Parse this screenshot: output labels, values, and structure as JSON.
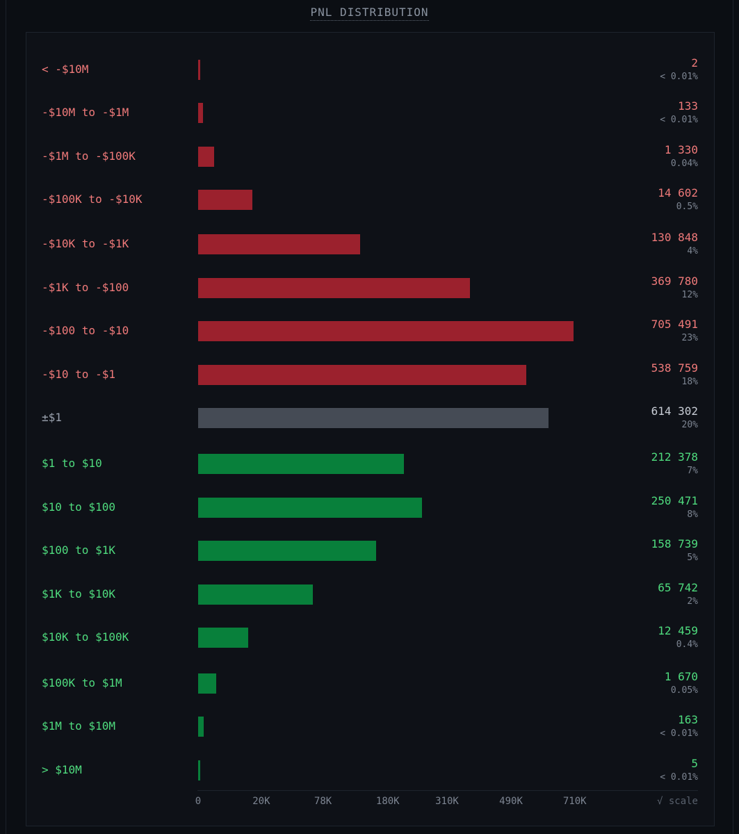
{
  "header": {
    "title": "PNL DISTRIBUTION"
  },
  "chart_data": {
    "type": "bar",
    "orientation": "horizontal",
    "scale": "sqrt",
    "scale_label": "√ scale",
    "xlim": [
      0,
      740000
    ],
    "x_ticks": [
      {
        "value": 0,
        "label": "0"
      },
      {
        "value": 20000,
        "label": "20K"
      },
      {
        "value": 78000,
        "label": "78K"
      },
      {
        "value": 180000,
        "label": "180K"
      },
      {
        "value": 310000,
        "label": "310K"
      },
      {
        "value": 490000,
        "label": "490K"
      },
      {
        "value": 710000,
        "label": "710K"
      }
    ],
    "bins": [
      {
        "label": "< -$10M",
        "count": 2,
        "count_label": "2",
        "pct_label": "< 0.01%",
        "group": "neg"
      },
      {
        "label": "-$10M to -$1M",
        "count": 133,
        "count_label": "133",
        "pct_label": "< 0.01%",
        "group": "neg"
      },
      {
        "label": "-$1M to -$100K",
        "count": 1330,
        "count_label": "1 330",
        "pct_label": "0.04%",
        "group": "neg"
      },
      {
        "label": "-$100K to -$10K",
        "count": 14602,
        "count_label": "14 602",
        "pct_label": "0.5%",
        "group": "neg"
      },
      {
        "label": "-$10K to -$1K",
        "count": 130848,
        "count_label": "130 848",
        "pct_label": "4%",
        "group": "neg"
      },
      {
        "label": "-$1K to -$100",
        "count": 369780,
        "count_label": "369 780",
        "pct_label": "12%",
        "group": "neg"
      },
      {
        "label": "-$100 to -$10",
        "count": 705491,
        "count_label": "705 491",
        "pct_label": "23%",
        "group": "neg"
      },
      {
        "label": "-$10 to -$1",
        "count": 538759,
        "count_label": "538 759",
        "pct_label": "18%",
        "group": "neg"
      },
      {
        "label": "±$1",
        "count": 614302,
        "count_label": "614 302",
        "pct_label": "20%",
        "group": "neu"
      },
      {
        "label": "$1 to $10",
        "count": 212378,
        "count_label": "212 378",
        "pct_label": "7%",
        "group": "pos"
      },
      {
        "label": "$10 to $100",
        "count": 250471,
        "count_label": "250 471",
        "pct_label": "8%",
        "group": "pos"
      },
      {
        "label": "$100 to $1K",
        "count": 158739,
        "count_label": "158 739",
        "pct_label": "5%",
        "group": "pos"
      },
      {
        "label": "$1K to $10K",
        "count": 65742,
        "count_label": "65 742",
        "pct_label": "2%",
        "group": "pos"
      },
      {
        "label": "$10K to $100K",
        "count": 12459,
        "count_label": "12 459",
        "pct_label": "0.4%",
        "group": "pos"
      },
      {
        "label": "$100K to $1M",
        "count": 1670,
        "count_label": "1 670",
        "pct_label": "0.05%",
        "group": "pos"
      },
      {
        "label": "$1M to $10M",
        "count": 163,
        "count_label": "163",
        "pct_label": "< 0.01%",
        "group": "pos"
      },
      {
        "label": "> $10M",
        "count": 5,
        "count_label": "5",
        "pct_label": "< 0.01%",
        "group": "pos"
      }
    ],
    "colors": {
      "neg_bar": "#9b212d",
      "neg_text": "#f07a7a",
      "neu_bar": "#454b55",
      "neu_text": "#9aa2ae",
      "pos_bar": "#08803b",
      "pos_text": "#4fdc7e"
    }
  }
}
